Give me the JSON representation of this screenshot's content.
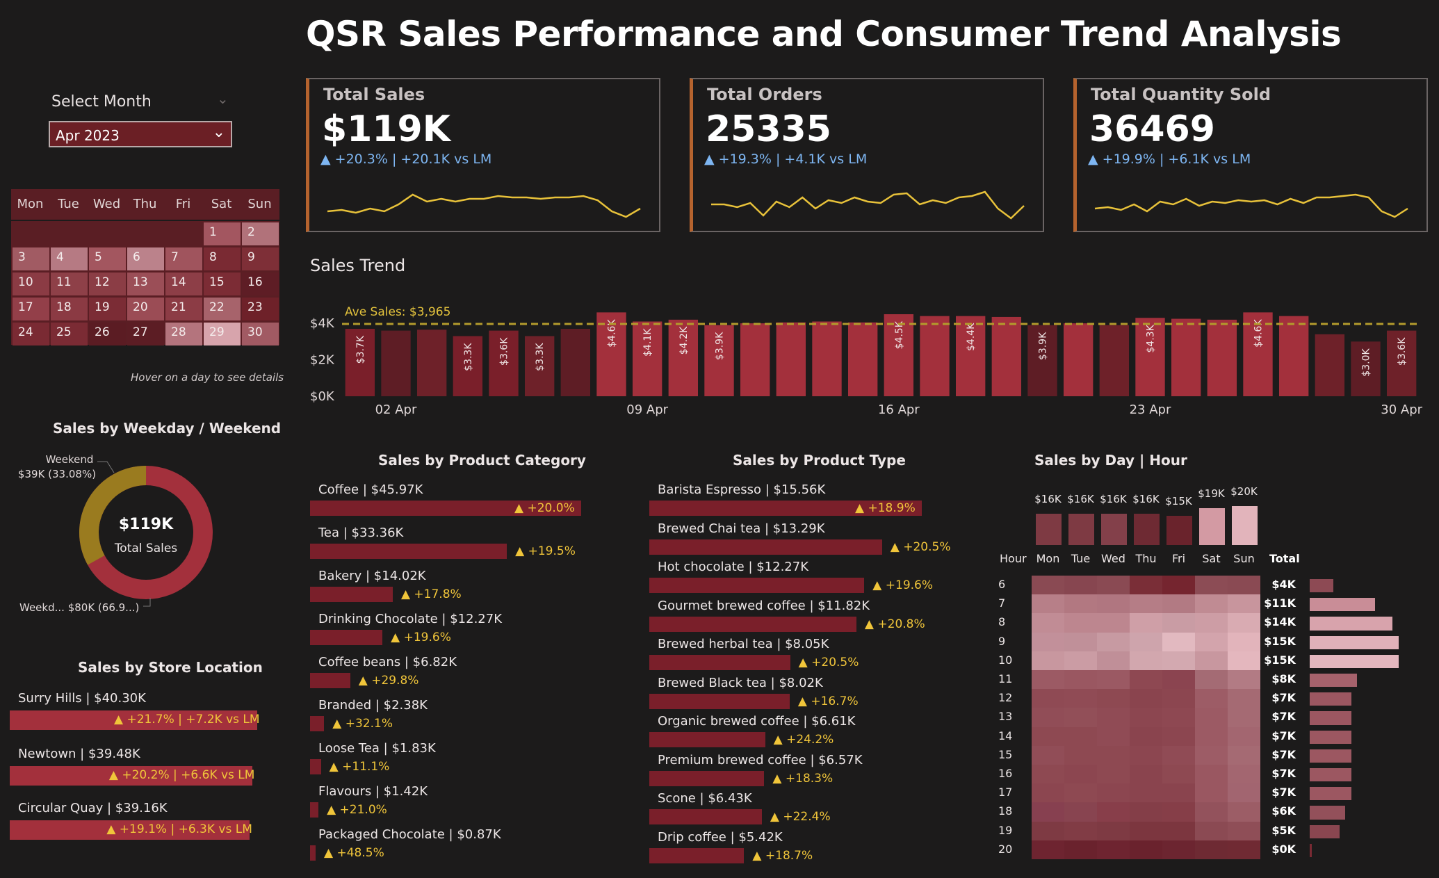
{
  "page_title": "QSR Sales Performance and Consumer Trend Analysis",
  "slicer": {
    "label": "Select Month",
    "value": "Apr 2023"
  },
  "calendar": {
    "weekdays": [
      "Mon",
      "Tue",
      "Wed",
      "Thu",
      "Fri",
      "Sat",
      "Sun"
    ],
    "hint": "Hover on a day to see details",
    "days": [
      {
        "d": "1",
        "row": 0,
        "col": 5,
        "color": "#a35660"
      },
      {
        "d": "2",
        "row": 0,
        "col": 6,
        "color": "#b1727a"
      },
      {
        "d": "3",
        "row": 1,
        "col": 0,
        "color": "#a15b63"
      },
      {
        "d": "4",
        "row": 1,
        "col": 1,
        "color": "#b67a83"
      },
      {
        "d": "5",
        "row": 1,
        "col": 2,
        "color": "#a3565f"
      },
      {
        "d": "6",
        "row": 1,
        "col": 3,
        "color": "#bb828b"
      },
      {
        "d": "7",
        "row": 1,
        "col": 4,
        "color": "#a0545d"
      },
      {
        "d": "8",
        "row": 1,
        "col": 5,
        "color": "#7a2a33"
      },
      {
        "d": "9",
        "row": 1,
        "col": 6,
        "color": "#7e2f37"
      },
      {
        "d": "10",
        "row": 2,
        "col": 0,
        "color": "#8b3b44"
      },
      {
        "d": "11",
        "row": 2,
        "col": 1,
        "color": "#8e4048"
      },
      {
        "d": "12",
        "row": 2,
        "col": 2,
        "color": "#8b3d45"
      },
      {
        "d": "13",
        "row": 2,
        "col": 3,
        "color": "#9b4e57"
      },
      {
        "d": "14",
        "row": 2,
        "col": 4,
        "color": "#8d3e47"
      },
      {
        "d": "15",
        "row": 2,
        "col": 5,
        "color": "#7c2c35"
      },
      {
        "d": "16",
        "row": 2,
        "col": 6,
        "color": "#5e1d25"
      },
      {
        "d": "17",
        "row": 3,
        "col": 0,
        "color": "#933f49"
      },
      {
        "d": "18",
        "row": 3,
        "col": 1,
        "color": "#8b3a43"
      },
      {
        "d": "19",
        "row": 3,
        "col": 2,
        "color": "#7b2c35"
      },
      {
        "d": "20",
        "row": 3,
        "col": 3,
        "color": "#9b4c55"
      },
      {
        "d": "21",
        "row": 3,
        "col": 4,
        "color": "#8c3c45"
      },
      {
        "d": "22",
        "row": 3,
        "col": 5,
        "color": "#a7636b"
      },
      {
        "d": "23",
        "row": 3,
        "col": 6,
        "color": "#6e2129"
      },
      {
        "d": "24",
        "row": 4,
        "col": 0,
        "color": "#7a2a33"
      },
      {
        "d": "25",
        "row": 4,
        "col": 1,
        "color": "#7b2b34"
      },
      {
        "d": "26",
        "row": 4,
        "col": 2,
        "color": "#5b1c23"
      },
      {
        "d": "27",
        "row": 4,
        "col": 3,
        "color": "#5c1d24"
      },
      {
        "d": "28",
        "row": 4,
        "col": 4,
        "color": "#b4747d"
      },
      {
        "d": "29",
        "row": 4,
        "col": 5,
        "color": "#d7a4ac"
      },
      {
        "d": "30",
        "row": 4,
        "col": 6,
        "color": "#a15a63"
      }
    ]
  },
  "kpis": [
    {
      "label": "Total Sales",
      "value": "$119K",
      "delta": "▲ +20.3% | +20.1K vs LM",
      "spark": [
        50,
        48,
        52,
        46,
        50,
        40,
        26,
        36,
        32,
        36,
        32,
        32,
        28,
        30,
        30,
        32,
        30,
        30,
        28,
        34,
        50,
        58,
        46
      ]
    },
    {
      "label": "Total Orders",
      "value": "25335",
      "delta": "▲ +19.3% | +4.1K vs LM",
      "spark": [
        40,
        40,
        44,
        38,
        56,
        36,
        44,
        30,
        46,
        34,
        38,
        30,
        36,
        38,
        26,
        24,
        40,
        34,
        38,
        30,
        28,
        22,
        46,
        60,
        42
      ]
    },
    {
      "label": "Total Quantity Sold",
      "value": "36469",
      "delta": "▲ +19.9% | +6.1K vs LM",
      "spark": [
        46,
        44,
        48,
        40,
        50,
        36,
        40,
        32,
        42,
        36,
        38,
        34,
        36,
        34,
        40,
        32,
        38,
        30,
        30,
        28,
        26,
        30,
        50,
        58,
        46
      ]
    }
  ],
  "sales_trend": {
    "title": "Sales Trend",
    "avg_label": "Ave Sales: $3,965",
    "x_ticks": [
      "02 Apr",
      "09 Apr",
      "16 Apr",
      "23 Apr",
      "30 Apr"
    ],
    "y_ticks": [
      "$4K",
      "$2K",
      "$0K"
    ]
  },
  "chart_data": {
    "type": "bar",
    "ylim": [
      0,
      4500
    ],
    "reference_line": 3965,
    "series": [
      {
        "values": [
          3700,
          3600,
          3650,
          3300,
          3600,
          3300,
          3700,
          4600,
          4100,
          4200,
          3900,
          4000,
          4050,
          4100,
          4050,
          4500,
          4400,
          4400,
          4350,
          3900,
          4000,
          3900,
          4300,
          4250,
          4200,
          4600,
          4400,
          3400,
          3000,
          3600
        ],
        "labels": [
          "$3.7K",
          "",
          "",
          "$3.3K",
          "$3.6K",
          "$3.3K",
          "",
          "$4.6K",
          "$4.1K",
          "$4.2K",
          "$3.9K",
          "",
          "",
          "",
          "",
          "$4.5K",
          "",
          "$4.4K",
          "",
          "$3.9K",
          "",
          "",
          "$4.3K",
          "",
          "",
          "$4.6K",
          "",
          "",
          "$3.0K",
          "$3.6K"
        ],
        "colors": [
          "#7a1f2a",
          "#5e1d25",
          "#6e2129",
          "#7a1f2a",
          "#7a1f2a",
          "#6e2129",
          "#5e1d25",
          "#a3303c",
          "#a3303c",
          "#a3303c",
          "#a3303c",
          "#a3303c",
          "#a3303c",
          "#a3303c",
          "#a3303c",
          "#a3303c",
          "#a3303c",
          "#a3303c",
          "#a3303c",
          "#5e1d25",
          "#a3303c",
          "#6e2129",
          "#a3303c",
          "#a3303c",
          "#a3303c",
          "#a3303c",
          "#a3303c",
          "#6e2129",
          "#5e1d25",
          "#6e2129"
        ]
      }
    ]
  },
  "weekday_weekend": {
    "title": "Sales by Weekday / Weekend",
    "center_value": "$119K",
    "center_label": "Total Sales",
    "weekend_label": "Weekend",
    "weekend_value": "$39K (33.08%)",
    "weekday_label": "Weekd... $80K (66.9...)",
    "weekend_pct": 33.08,
    "weekend_color": "#9a7b1f",
    "weekday_color": "#a3303c"
  },
  "store_location": {
    "title": "Sales by Store Location",
    "items": [
      {
        "label": "Surry Hills | $40.30K",
        "delta": "▲ +21.7% | +7.2K vs LM",
        "pct": 100
      },
      {
        "label": "Newtown | $39.48K",
        "delta": "▲ +20.2% | +6.6K vs LM",
        "pct": 98
      },
      {
        "label": "Circular Quay | $39.16K",
        "delta": "▲ +19.1% | +6.3K vs LM",
        "pct": 97
      }
    ]
  },
  "product_category": {
    "title": "Sales by Product Category",
    "items": [
      {
        "label": "Coffee | $45.97K",
        "delta": "▲ +20.0%",
        "pct": 100
      },
      {
        "label": "Tea | $33.36K",
        "delta": "▲ +19.5%",
        "pct": 72.6
      },
      {
        "label": "Bakery | $14.02K",
        "delta": "▲ +17.8%",
        "pct": 30.5
      },
      {
        "label": "Drinking Chocolate | $12.27K",
        "delta": "▲ +19.6%",
        "pct": 26.7
      },
      {
        "label": "Coffee beans | $6.82K",
        "delta": "▲ +29.8%",
        "pct": 14.8
      },
      {
        "label": "Branded | $2.38K",
        "delta": "▲ +32.1%",
        "pct": 5.2
      },
      {
        "label": "Loose Tea | $1.83K",
        "delta": "▲ +11.1%",
        "pct": 4.0
      },
      {
        "label": "Flavours | $1.42K",
        "delta": "▲ +21.0%",
        "pct": 3.1
      },
      {
        "label": "Packaged Chocolate | $0.87K",
        "delta": "▲ +48.5%",
        "pct": 1.9
      }
    ]
  },
  "product_type": {
    "title": "Sales by Product Type",
    "items": [
      {
        "label": "Barista Espresso | $15.56K",
        "delta": "▲ +18.9%",
        "pct": 100
      },
      {
        "label": "Brewed Chai tea | $13.29K",
        "delta": "▲ +20.5%",
        "pct": 85.4
      },
      {
        "label": "Hot chocolate | $12.27K",
        "delta": "▲ +19.6%",
        "pct": 78.9
      },
      {
        "label": "Gourmet brewed coffee | $11.82K",
        "delta": "▲ +20.8%",
        "pct": 76.0
      },
      {
        "label": "Brewed herbal tea | $8.05K",
        "delta": "▲ +20.5%",
        "pct": 51.7
      },
      {
        "label": "Brewed Black tea | $8.02K",
        "delta": "▲ +16.7%",
        "pct": 51.5
      },
      {
        "label": "Organic brewed coffee | $6.61K",
        "delta": "▲ +24.2%",
        "pct": 42.5
      },
      {
        "label": "Premium brewed coffee | $6.57K",
        "delta": "▲ +18.3%",
        "pct": 42.2
      },
      {
        "label": "Scone | $6.43K",
        "delta": "▲ +22.4%",
        "pct": 41.3
      },
      {
        "label": "Drip coffee | $5.42K",
        "delta": "▲ +18.7%",
        "pct": 34.8
      }
    ]
  },
  "day_hour": {
    "title": "Sales by Day | Hour",
    "days": [
      "Mon",
      "Tue",
      "Wed",
      "Thu",
      "Fri",
      "Sat",
      "Sun"
    ],
    "day_totals": [
      "$16K",
      "$16K",
      "$16K",
      "$16K",
      "$15K",
      "$19K",
      "$20K"
    ],
    "day_total_values": [
      16,
      16,
      16,
      16,
      15,
      19,
      20
    ],
    "day_total_colors": [
      "#7e3a43",
      "#7e3a43",
      "#83404a",
      "#6e2a33",
      "#6a232c",
      "#d39aa3",
      "#e2b4bb"
    ],
    "hour_header": "Hour",
    "total_header": "Total",
    "hours": [
      "6",
      "7",
      "8",
      "9",
      "10",
      "11",
      "12",
      "13",
      "14",
      "15",
      "16",
      "17",
      "18",
      "19",
      "20"
    ],
    "hour_totals": [
      "$4K",
      "$11K",
      "$14K",
      "$15K",
      "$15K",
      "$8K",
      "$7K",
      "$7K",
      "$7K",
      "$7K",
      "$7K",
      "$7K",
      "$6K",
      "$5K",
      "$0K"
    ],
    "hour_total_values": [
      4,
      11,
      14,
      15,
      15,
      8,
      7,
      7,
      7,
      7,
      7,
      7,
      6,
      5,
      0.3
    ],
    "hour_total_colors": [
      "#8d4a54",
      "#c98d97",
      "#d8a3ac",
      "#e0b1b9",
      "#e3b7be",
      "#a6626c",
      "#9c5761",
      "#9c5761",
      "#9c5761",
      "#9c5761",
      "#9c5761",
      "#9c5761",
      "#93505a",
      "#8a4650",
      "#7a2a33"
    ],
    "grid": [
      [
        "#8a4a53",
        "#874650",
        "#8a4a53",
        "#7a2e37",
        "#75252f",
        "#8c4c55",
        "#8a4a53"
      ],
      [
        "#b77f88",
        "#b27881",
        "#b07680",
        "#b57d86",
        "#b27a83",
        "#c08b93",
        "#c8959d"
      ],
      [
        "#c18c95",
        "#bd868f",
        "#bd868f",
        "#cf9fa7",
        "#c99ca4",
        "#cd9da5",
        "#d9abb2"
      ],
      [
        "#c2909a",
        "#c09099",
        "#c79aa2",
        "#cea4ac",
        "#e2b9c0",
        "#d3a4ac",
        "#e2b4bb"
      ],
      [
        "#c8979f",
        "#cb9ca4",
        "#c08f98",
        "#d2a7ae",
        "#d3a9b0",
        "#c8979f",
        "#e4b7be"
      ],
      [
        "#9c5a64",
        "#9a5761",
        "#9b5963",
        "#8e4852",
        "#8b4450",
        "#a46b74",
        "#b27b84"
      ],
      [
        "#8f4a54",
        "#904b55",
        "#8e4952",
        "#8a444e",
        "#8c4650",
        "#9d5c66",
        "#a56a73"
      ],
      [
        "#914d57",
        "#924f58",
        "#904b55",
        "#8c4650",
        "#8e4852",
        "#9c5a64",
        "#a56a73"
      ],
      [
        "#8e4952",
        "#8e4952",
        "#904b55",
        "#8a444e",
        "#8c4650",
        "#9c5a64",
        "#a36670"
      ],
      [
        "#914d57",
        "#8e4952",
        "#8e4952",
        "#8c4650",
        "#904b55",
        "#9d5c66",
        "#a56a73"
      ],
      [
        "#8e4952",
        "#8c4650",
        "#8e4952",
        "#8a444e",
        "#8e4952",
        "#9a5761",
        "#a36670"
      ],
      [
        "#8c4650",
        "#8e4952",
        "#8c4650",
        "#8a444e",
        "#8a444e",
        "#9a5761",
        "#a26570"
      ],
      [
        "#874050",
        "#884450",
        "#883e4a",
        "#843e48",
        "#863e48",
        "#93525c",
        "#9c5d66"
      ],
      [
        "#7e3a43",
        "#813c45",
        "#7e3a43",
        "#7c363f",
        "#7c363f",
        "#8b4a53",
        "#8f4e57"
      ],
      [
        "#6e2430",
        "#6a222d",
        "#6e2430",
        "#6a222d",
        "#6c2530",
        "#6e2a33",
        "#702a33"
      ]
    ]
  }
}
